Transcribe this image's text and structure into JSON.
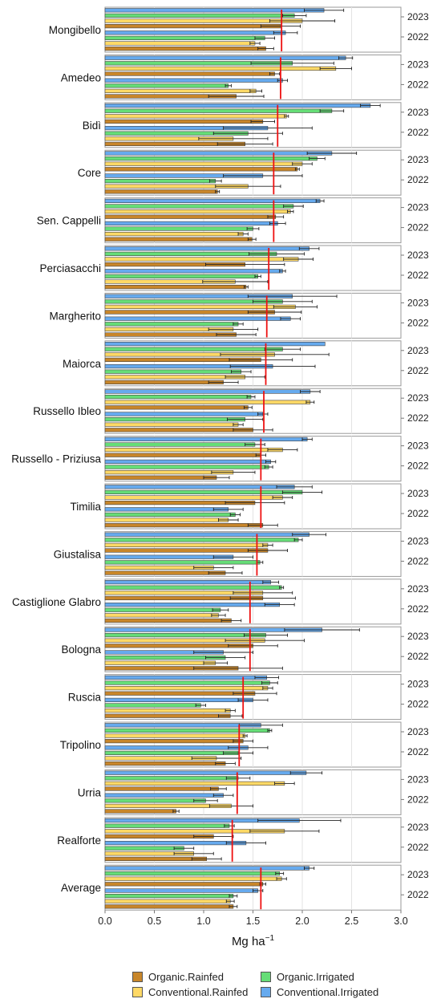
{
  "chart_data": {
    "type": "bar",
    "orientation": "horizontal",
    "xlabel": "Mg ha",
    "xlabel_sup": "−1",
    "xlim": [
      0,
      3.0
    ],
    "xticks": [
      "0.0",
      "0.5",
      "1.0",
      "1.5",
      "2.0",
      "2.5",
      "3.0"
    ],
    "years": [
      "2023",
      "2022"
    ],
    "series": [
      {
        "name": "Organic.Rainfed",
        "color": "#c8862a"
      },
      {
        "name": "Conventional.Rainfed",
        "color": "#ffd966"
      },
      {
        "name": "Organic.Irrigated",
        "color": "#66dd77"
      },
      {
        "name": "Conventional.Irrigated",
        "color": "#66aaee"
      }
    ],
    "varieties": [
      {
        "name": "Mongibello",
        "mean": 1.79,
        "values": {
          "2023": {
            "Conventional.Irrigated": [
              2.22,
              0.2
            ],
            "Organic.Irrigated": [
              1.92,
              0.12
            ],
            "Conventional.Rainfed": [
              2.0,
              0.33
            ],
            "Organic.Rainfed": [
              1.78,
              0.2
            ]
          },
          "2022": {
            "Conventional.Irrigated": [
              1.83,
              0.12
            ],
            "Organic.Irrigated": [
              1.62,
              0.1
            ],
            "Conventional.Rainfed": [
              1.52,
              0.05
            ],
            "Organic.Rainfed": [
              1.63,
              0.08
            ]
          }
        }
      },
      {
        "name": "Amedeo",
        "mean": 1.78,
        "values": {
          "2023": {
            "Conventional.Irrigated": [
              2.44,
              0.07
            ],
            "Organic.Irrigated": [
              1.9,
              0.42
            ],
            "Conventional.Rainfed": [
              2.34,
              0.16
            ],
            "Organic.Rainfed": [
              1.72,
              0.05
            ]
          },
          "2022": {
            "Conventional.Irrigated": [
              1.8,
              0.05
            ],
            "Organic.Irrigated": [
              1.25,
              0.03
            ],
            "Conventional.Rainfed": [
              1.53,
              0.06
            ],
            "Organic.Rainfed": [
              1.33,
              0.28
            ]
          }
        }
      },
      {
        "name": "Bidì",
        "mean": 1.75,
        "values": {
          "2023": {
            "Conventional.Irrigated": [
              2.69,
              0.1
            ],
            "Organic.Irrigated": [
              2.3,
              0.12
            ],
            "Conventional.Rainfed": [
              1.84,
              0.02
            ],
            "Organic.Rainfed": [
              1.6,
              0.12
            ]
          },
          "2022": {
            "Conventional.Irrigated": [
              1.65,
              0.45
            ],
            "Organic.Irrigated": [
              1.45,
              0.35
            ],
            "Conventional.Rainfed": [
              1.3,
              0.35
            ],
            "Organic.Rainfed": [
              1.42,
              0.28
            ]
          }
        }
      },
      {
        "name": "Core",
        "mean": 1.71,
        "values": {
          "2023": {
            "Conventional.Irrigated": [
              2.3,
              0.25
            ],
            "Organic.Irrigated": [
              2.15,
              0.08
            ],
            "Conventional.Rainfed": [
              2.0,
              0.1
            ],
            "Organic.Rainfed": [
              1.95,
              0.02
            ]
          },
          "2022": {
            "Conventional.Irrigated": [
              1.6,
              0.4
            ],
            "Organic.Irrigated": [
              1.12,
              0.06
            ],
            "Conventional.Rainfed": [
              1.45,
              0.33
            ],
            "Organic.Rainfed": [
              1.14,
              0.02
            ]
          }
        }
      },
      {
        "name": "Sen. Cappelli",
        "mean": 1.71,
        "values": {
          "2023": {
            "Conventional.Irrigated": [
              2.18,
              0.04
            ],
            "Organic.Irrigated": [
              1.91,
              0.1
            ],
            "Conventional.Rainfed": [
              1.88,
              0.03
            ],
            "Organic.Rainfed": [
              1.73,
              0.08
            ]
          },
          "2022": {
            "Conventional.Irrigated": [
              1.75,
              0.08
            ],
            "Organic.Irrigated": [
              1.5,
              0.06
            ],
            "Conventional.Rainfed": [
              1.4,
              0.05
            ],
            "Organic.Rainfed": [
              1.49,
              0.04
            ]
          }
        }
      },
      {
        "name": "Perciasacchi",
        "mean": 1.66,
        "values": {
          "2023": {
            "Conventional.Irrigated": [
              2.07,
              0.1
            ],
            "Organic.Irrigated": [
              1.74,
              0.28
            ],
            "Conventional.Rainfed": [
              1.96,
              0.15
            ],
            "Organic.Rainfed": [
              1.42,
              0.4
            ]
          },
          "2022": {
            "Conventional.Irrigated": [
              1.8,
              0.03
            ],
            "Organic.Irrigated": [
              1.55,
              0.03
            ],
            "Conventional.Rainfed": [
              1.32,
              0.33
            ],
            "Organic.Rainfed": [
              1.43,
              0.02
            ]
          }
        }
      },
      {
        "name": "Margherito",
        "mean": 1.64,
        "values": {
          "2023": {
            "Conventional.Irrigated": [
              1.9,
              0.45
            ],
            "Organic.Irrigated": [
              1.8,
              0.3
            ],
            "Conventional.Rainfed": [
              1.93,
              0.22
            ],
            "Organic.Rainfed": [
              1.72,
              0.27
            ]
          },
          "2022": {
            "Conventional.Irrigated": [
              1.88,
              0.1
            ],
            "Organic.Irrigated": [
              1.35,
              0.05
            ],
            "Conventional.Rainfed": [
              1.3,
              0.25
            ],
            "Organic.Rainfed": [
              1.33,
              0.2
            ]
          }
        }
      },
      {
        "name": "Maiorca",
        "mean": 1.63,
        "values": {
          "2023": {
            "Conventional.Irrigated": [
              2.23,
              0.0
            ],
            "Organic.Irrigated": [
              1.8,
              0.18
            ],
            "Conventional.Rainfed": [
              1.72,
              0.55
            ],
            "Organic.Rainfed": [
              1.58,
              0.32
            ]
          },
          "2022": {
            "Conventional.Irrigated": [
              1.7,
              0.43
            ],
            "Organic.Irrigated": [
              1.38,
              0.1
            ],
            "Conventional.Rainfed": [
              1.42,
              0.2
            ],
            "Organic.Rainfed": [
              1.2,
              0.15
            ]
          }
        }
      },
      {
        "name": "Russello Ibleo",
        "mean": 1.61,
        "values": {
          "2023": {
            "Conventional.Irrigated": [
              2.08,
              0.1
            ],
            "Organic.Irrigated": [
              1.48,
              0.04
            ],
            "Conventional.Rainfed": [
              2.08,
              0.04
            ],
            "Organic.Rainfed": [
              1.45,
              0.04
            ]
          },
          "2022": {
            "Conventional.Irrigated": [
              1.6,
              0.05
            ],
            "Organic.Irrigated": [
              1.42,
              0.18
            ],
            "Conventional.Rainfed": [
              1.35,
              0.05
            ],
            "Organic.Rainfed": [
              1.5,
              0.2
            ]
          }
        }
      },
      {
        "name": "Russello - Priziusa",
        "mean": 1.58,
        "values": {
          "2023": {
            "Conventional.Irrigated": [
              2.05,
              0.05
            ],
            "Organic.Irrigated": [
              1.52,
              0.1
            ],
            "Conventional.Rainfed": [
              1.8,
              0.15
            ],
            "Organic.Rainfed": [
              1.58,
              0.05
            ]
          },
          "2022": {
            "Conventional.Irrigated": [
              1.68,
              0.05
            ],
            "Organic.Irrigated": [
              1.66,
              0.04
            ],
            "Conventional.Rainfed": [
              1.3,
              0.22
            ],
            "Organic.Rainfed": [
              1.13,
              0.13
            ]
          }
        }
      },
      {
        "name": "Timilia",
        "mean": 1.58,
        "values": {
          "2023": {
            "Conventional.Irrigated": [
              1.92,
              0.18
            ],
            "Organic.Irrigated": [
              2.0,
              0.2
            ],
            "Conventional.Rainfed": [
              1.8,
              0.1
            ],
            "Organic.Rainfed": [
              1.52,
              0.3
            ]
          },
          "2022": {
            "Conventional.Irrigated": [
              1.25,
              0.15
            ],
            "Organic.Irrigated": [
              1.32,
              0.05
            ],
            "Conventional.Rainfed": [
              1.25,
              0.1
            ],
            "Organic.Rainfed": [
              1.6,
              0.15
            ]
          }
        }
      },
      {
        "name": "Giustalisa",
        "mean": 1.54,
        "values": {
          "2023": {
            "Conventional.Irrigated": [
              2.07,
              0.17
            ],
            "Organic.Irrigated": [
              1.96,
              0.04
            ],
            "Conventional.Rainfed": [
              1.65,
              0.05
            ],
            "Organic.Rainfed": [
              1.65,
              0.2
            ]
          },
          "2022": {
            "Conventional.Irrigated": [
              1.3,
              0.2
            ],
            "Organic.Irrigated": [
              1.57,
              0.03
            ],
            "Conventional.Rainfed": [
              1.1,
              0.2
            ],
            "Organic.Rainfed": [
              1.22,
              0.17
            ]
          }
        }
      },
      {
        "name": "Castiglione Glabro",
        "mean": 1.47,
        "values": {
          "2023": {
            "Conventional.Irrigated": [
              1.68,
              0.08
            ],
            "Organic.Irrigated": [
              1.79,
              0.02
            ],
            "Conventional.Rainfed": [
              1.6,
              0.3
            ],
            "Organic.Rainfed": [
              1.6,
              0.33
            ]
          },
          "2022": {
            "Conventional.Irrigated": [
              1.77,
              0.15
            ],
            "Organic.Irrigated": [
              1.17,
              0.08
            ],
            "Conventional.Rainfed": [
              1.15,
              0.07
            ],
            "Organic.Rainfed": [
              1.28,
              0.1
            ]
          }
        }
      },
      {
        "name": "Bologna",
        "mean": 1.47,
        "values": {
          "2023": {
            "Conventional.Irrigated": [
              2.2,
              0.38
            ],
            "Organic.Irrigated": [
              1.63,
              0.22
            ],
            "Conventional.Rainfed": [
              1.62,
              0.4
            ],
            "Organic.Rainfed": [
              1.5,
              0.25
            ]
          },
          "2022": {
            "Conventional.Irrigated": [
              1.2,
              0.3
            ],
            "Organic.Irrigated": [
              1.22,
              0.2
            ],
            "Conventional.Rainfed": [
              1.12,
              0.12
            ],
            "Organic.Rainfed": [
              1.35,
              0.45
            ]
          }
        }
      },
      {
        "name": "Ruscia",
        "mean": 1.4,
        "values": {
          "2023": {
            "Conventional.Irrigated": [
              1.64,
              0.12
            ],
            "Organic.Irrigated": [
              1.67,
              0.08
            ],
            "Conventional.Rainfed": [
              1.65,
              0.05
            ],
            "Organic.Rainfed": [
              1.52,
              0.22
            ]
          },
          "2022": {
            "Conventional.Irrigated": [
              1.5,
              0.15
            ],
            "Organic.Irrigated": [
              0.97,
              0.05
            ],
            "Conventional.Rainfed": [
              1.27,
              0.05
            ],
            "Organic.Rainfed": [
              1.27,
              0.12
            ]
          }
        }
      },
      {
        "name": "Tripolino",
        "mean": 1.36,
        "values": {
          "2023": {
            "Conventional.Irrigated": [
              1.58,
              0.22
            ],
            "Organic.Irrigated": [
              1.67,
              0.02
            ],
            "Conventional.Rainfed": [
              1.42,
              0.02
            ],
            "Organic.Rainfed": [
              1.4,
              0.1
            ]
          },
          "2022": {
            "Conventional.Irrigated": [
              1.45,
              0.2
            ],
            "Organic.Irrigated": [
              1.35,
              0.15
            ],
            "Conventional.Rainfed": [
              1.13,
              0.25
            ],
            "Organic.Rainfed": [
              1.22,
              0.1
            ]
          }
        }
      },
      {
        "name": "Urria",
        "mean": 1.34,
        "values": {
          "2023": {
            "Conventional.Irrigated": [
              2.04,
              0.16
            ],
            "Organic.Irrigated": [
              1.35,
              0.12
            ],
            "Conventional.Rainfed": [
              1.82,
              0.1
            ],
            "Organic.Rainfed": [
              1.15,
              0.08
            ]
          },
          "2022": {
            "Conventional.Irrigated": [
              1.2,
              0.1
            ],
            "Organic.Irrigated": [
              1.02,
              0.12
            ],
            "Conventional.Rainfed": [
              1.28,
              0.22
            ],
            "Organic.Rainfed": [
              0.72,
              0.03
            ]
          }
        }
      },
      {
        "name": "Realforte",
        "mean": 1.29,
        "values": {
          "2023": {
            "Conventional.Irrigated": [
              1.97,
              0.42
            ],
            "Organic.Irrigated": [
              1.26,
              0.05
            ],
            "Conventional.Rainfed": [
              1.82,
              0.35
            ],
            "Organic.Rainfed": [
              1.1,
              0.2
            ]
          },
          "2022": {
            "Conventional.Irrigated": [
              1.43,
              0.2
            ],
            "Organic.Irrigated": [
              0.8,
              0.1
            ],
            "Conventional.Rainfed": [
              0.9,
              0.2
            ],
            "Organic.Rainfed": [
              1.03,
              0.15
            ]
          }
        }
      },
      {
        "name": "Average",
        "mean": 1.58,
        "values": {
          "2023": {
            "Conventional.Irrigated": [
              2.07,
              0.05
            ],
            "Organic.Irrigated": [
              1.77,
              0.04
            ],
            "Conventional.Rainfed": [
              1.79,
              0.05
            ],
            "Organic.Rainfed": [
              1.6,
              0.03
            ]
          },
          "2022": {
            "Conventional.Irrigated": [
              1.55,
              0.05
            ],
            "Organic.Irrigated": [
              1.3,
              0.04
            ],
            "Conventional.Rainfed": [
              1.27,
              0.04
            ],
            "Organic.Rainfed": [
              1.3,
              0.04
            ]
          }
        }
      }
    ]
  }
}
